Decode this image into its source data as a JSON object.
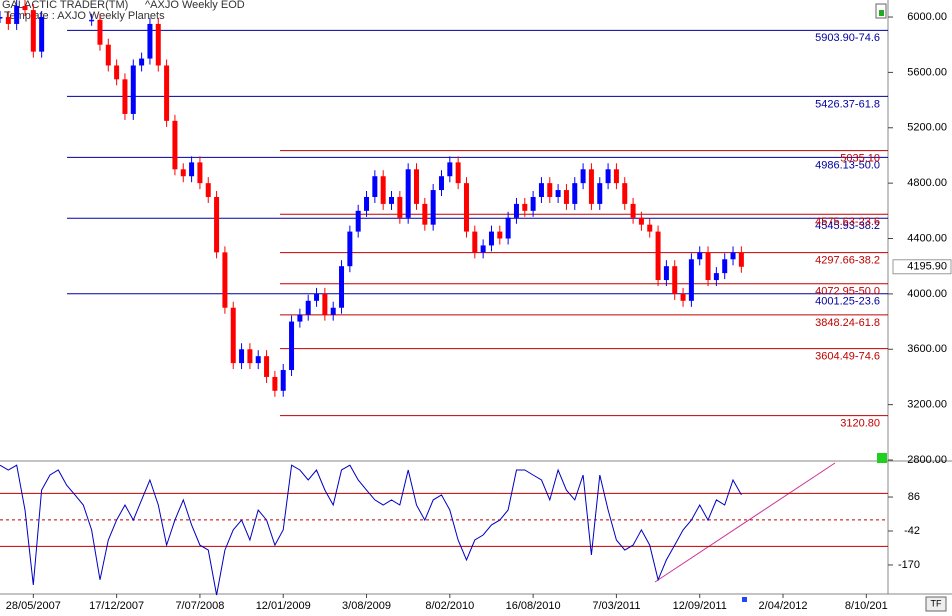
{
  "header": {
    "app": "GALACTIC TRADER(TM)",
    "symbol": "^AXJO Weekly EOD",
    "button": "TF"
  },
  "chart_data": [
    {
      "type": "candlestick",
      "title": "Template : AXJO Weekly Planets",
      "categories": [
        null,
        null,
        null,
        null,
        "28/05/2007",
        null,
        null,
        null,
        null,
        null,
        null,
        null,
        null,
        null,
        "17/12/2007",
        null,
        null,
        null,
        null,
        null,
        null,
        null,
        null,
        null,
        "7/07/2008",
        null,
        null,
        null,
        null,
        null,
        null,
        null,
        null,
        null,
        "12/01/2009",
        null,
        null,
        null,
        null,
        null,
        null,
        null,
        null,
        null,
        "3/08/2009",
        null,
        null,
        null,
        null,
        null,
        null,
        null,
        null,
        null,
        "8/02/2010",
        null,
        null,
        null,
        null,
        null,
        null,
        null,
        null,
        null,
        "16/08/2010",
        null,
        null,
        null,
        null,
        null,
        null,
        null,
        null,
        null,
        "7/03/2011",
        null,
        null,
        null,
        null,
        null,
        null,
        null,
        null,
        null,
        "12/09/2011",
        null,
        null,
        null,
        null,
        null,
        null,
        null,
        null,
        null,
        "2/04/2012",
        null,
        null,
        null,
        null,
        null,
        null,
        null,
        null,
        null,
        "8/10/201",
        null,
        null
      ],
      "values": [
        6000,
        5950,
        6080,
        6050,
        5750,
        6000,
        null,
        null,
        null,
        null,
        null,
        5980,
        5800,
        5650,
        5550,
        5300,
        5650,
        5700,
        5950,
        5650,
        5250,
        4900,
        4850,
        4950,
        4800,
        4700,
        4300,
        3900,
        3500,
        3600,
        3500,
        3550,
        3400,
        3300,
        3450,
        3800,
        3850,
        3950,
        4000,
        3850,
        3900,
        4200,
        4450,
        4600,
        4700,
        4850,
        4650,
        4700,
        4550,
        4900,
        4650,
        4500,
        4750,
        4850,
        4950,
        4800,
        4450,
        4300,
        4350,
        4450,
        4400,
        4550,
        4650,
        4600,
        4700,
        4800,
        4700,
        4750,
        4650,
        4800,
        4900,
        4650,
        4800,
        4900,
        4800,
        4650,
        4550,
        4500,
        4450,
        4100,
        4200,
        4000,
        3950,
        4250,
        4300,
        4100,
        4150,
        4250,
        4300,
        4195.9,
        null,
        null,
        null,
        null,
        null,
        null,
        null,
        null,
        null,
        null,
        null,
        null,
        null,
        null,
        null,
        null,
        null
      ],
      "up_color": "#0000ff",
      "down_color": "#ff0000",
      "ylim": [
        2800,
        6123
      ],
      "yticks": [
        {
          "value": 6000,
          "label": "6000.00"
        },
        {
          "value": 5600,
          "label": "5600.00"
        },
        {
          "value": 5200,
          "label": "5200.00"
        },
        {
          "value": 4800,
          "label": "4800.00"
        },
        {
          "value": 4400,
          "label": "4400.00"
        },
        {
          "value": 4000,
          "label": "4000.00"
        },
        {
          "value": 3600,
          "label": "3600.00"
        },
        {
          "value": 3200,
          "label": "3200.00"
        },
        {
          "value": 2800,
          "label": "2800.00"
        }
      ],
      "current": {
        "value": 4195.9,
        "label": "4195.90"
      },
      "levels": [
        {
          "color": "#0000a0",
          "lines": [
            {
              "value": 5903.9,
              "label": "5903.90-74.6"
            },
            {
              "value": 5426.37,
              "label": "5426.37-61.8"
            },
            {
              "value": 4986.13,
              "label": "4986.13-50.0"
            },
            {
              "value": 4545.93,
              "label": "4545.93-38.2"
            },
            {
              "value": 4001.25,
              "label": "4001.25-23.6"
            }
          ]
        },
        {
          "color": "#c00000",
          "lines": [
            {
              "value": 5035.1,
              "label": "5035.10"
            },
            {
              "value": 4575.63,
              "label": "4575.63-23.6"
            },
            {
              "value": 4297.66,
              "label": "4297.66-38.2"
            },
            {
              "value": 4072.95,
              "label": "4072.95-50.0"
            },
            {
              "value": 3848.24,
              "label": "3848.24-61.8"
            },
            {
              "value": 3604.49,
              "label": "3604.49-74.6"
            },
            {
              "value": 3120.8,
              "label": "3120.80"
            }
          ]
        }
      ]
    },
    {
      "type": "line",
      "color": "#0000c0",
      "values": [
        206,
        188,
        206,
        37,
        -245,
        112,
        169,
        188,
        131,
        94,
        56,
        -38,
        -226,
        -76,
        -1,
        56,
        -1,
        75,
        150,
        56,
        -95,
        -1,
        75,
        -19,
        -95,
        -114,
        -283,
        -114,
        -38,
        -1,
        -76,
        37,
        -1,
        -95,
        -38,
        206,
        188,
        150,
        188,
        112,
        56,
        188,
        206,
        150,
        112,
        75,
        56,
        75,
        56,
        188,
        56,
        -1,
        75,
        94,
        37,
        -76,
        -151,
        -76,
        -57,
        -19,
        -1,
        37,
        188,
        188,
        169,
        150,
        75,
        188,
        112,
        75,
        169,
        -132,
        169,
        37,
        -76,
        -114,
        -95,
        -38,
        -95,
        -226,
        -151,
        -95,
        -38,
        -1,
        56,
        -1,
        75,
        56,
        150,
        94,
        null,
        null,
        null,
        null,
        null,
        null,
        null,
        null,
        null,
        null,
        null,
        null,
        null,
        null,
        null,
        null,
        null
      ],
      "ylim": [
        -302,
        218
      ],
      "yticks": [
        86,
        -42,
        -170
      ],
      "levels": [
        100,
        0,
        -100
      ],
      "level_color": "#c00000"
    }
  ]
}
